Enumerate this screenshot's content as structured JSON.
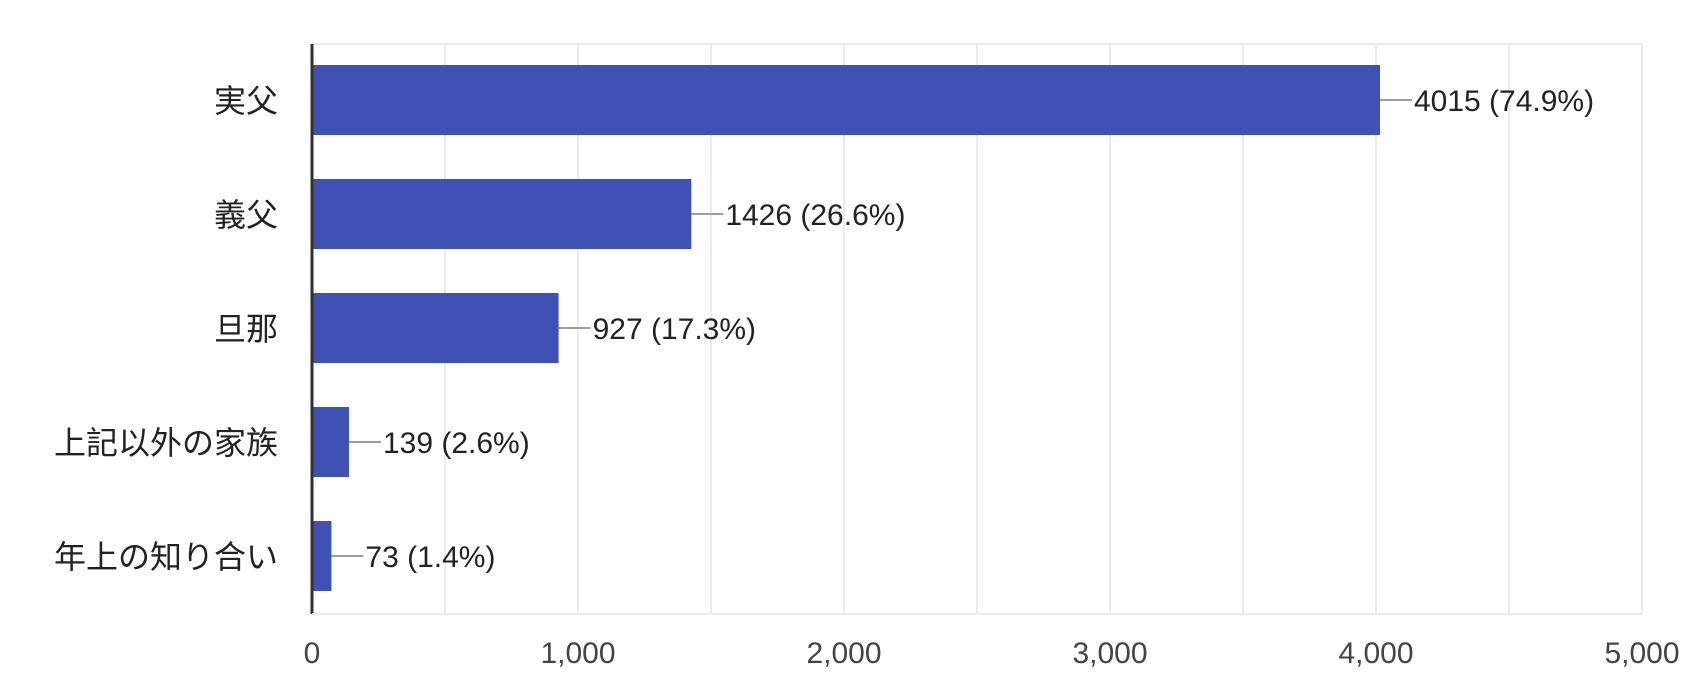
{
  "chart_data": {
    "type": "bar",
    "orientation": "horizontal",
    "categories": [
      "実父",
      "義父",
      "旦那",
      "上記以外の家族",
      "年上の知り合い"
    ],
    "values": [
      4015,
      1426,
      927,
      139,
      73
    ],
    "data_labels": [
      "4015 (74.9%)",
      "1426 (26.6%)",
      "927 (17.3%)",
      "139 (2.6%)",
      "73 (1.4%)"
    ],
    "xlim": [
      0,
      5000
    ],
    "major_ticks": [
      0,
      1000,
      2000,
      3000,
      4000,
      5000
    ],
    "tick_labels": [
      "0",
      "1,000",
      "2,000",
      "3,000",
      "4,000",
      "5,000"
    ],
    "minor_grid_step": 500,
    "grid": true,
    "bar_color": "#3f51b5",
    "leader_color": "#9e9e9e",
    "grid_color": "#ebebeb",
    "axis_color": "#333333"
  }
}
